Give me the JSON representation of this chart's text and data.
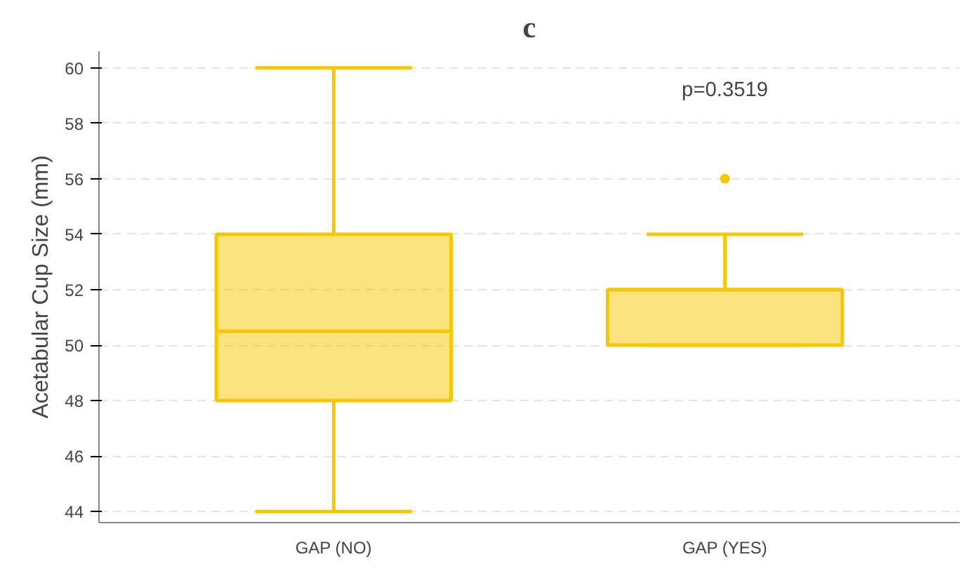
{
  "chart_data": {
    "type": "box",
    "title": "c",
    "ylabel": "Acetabular Cup Size (mm)",
    "categories": [
      "GAP (NO)",
      "GAP (YES)"
    ],
    "series": [
      {
        "color": "#f5c800",
        "boxes": [
          {
            "low": 44,
            "q1": 48,
            "median": 50.5,
            "q3": 54,
            "high": 60
          },
          {
            "low": 50,
            "q1": 50,
            "median": 52,
            "q3": 52,
            "high": 54,
            "outliers": [
              56
            ]
          }
        ]
      }
    ],
    "ylim": [
      43.6,
      60.6
    ],
    "yticks": [
      44,
      46,
      48,
      50,
      52,
      54,
      56,
      58,
      60
    ],
    "grid": "y",
    "annotations": [
      "p=0.3519"
    ]
  }
}
